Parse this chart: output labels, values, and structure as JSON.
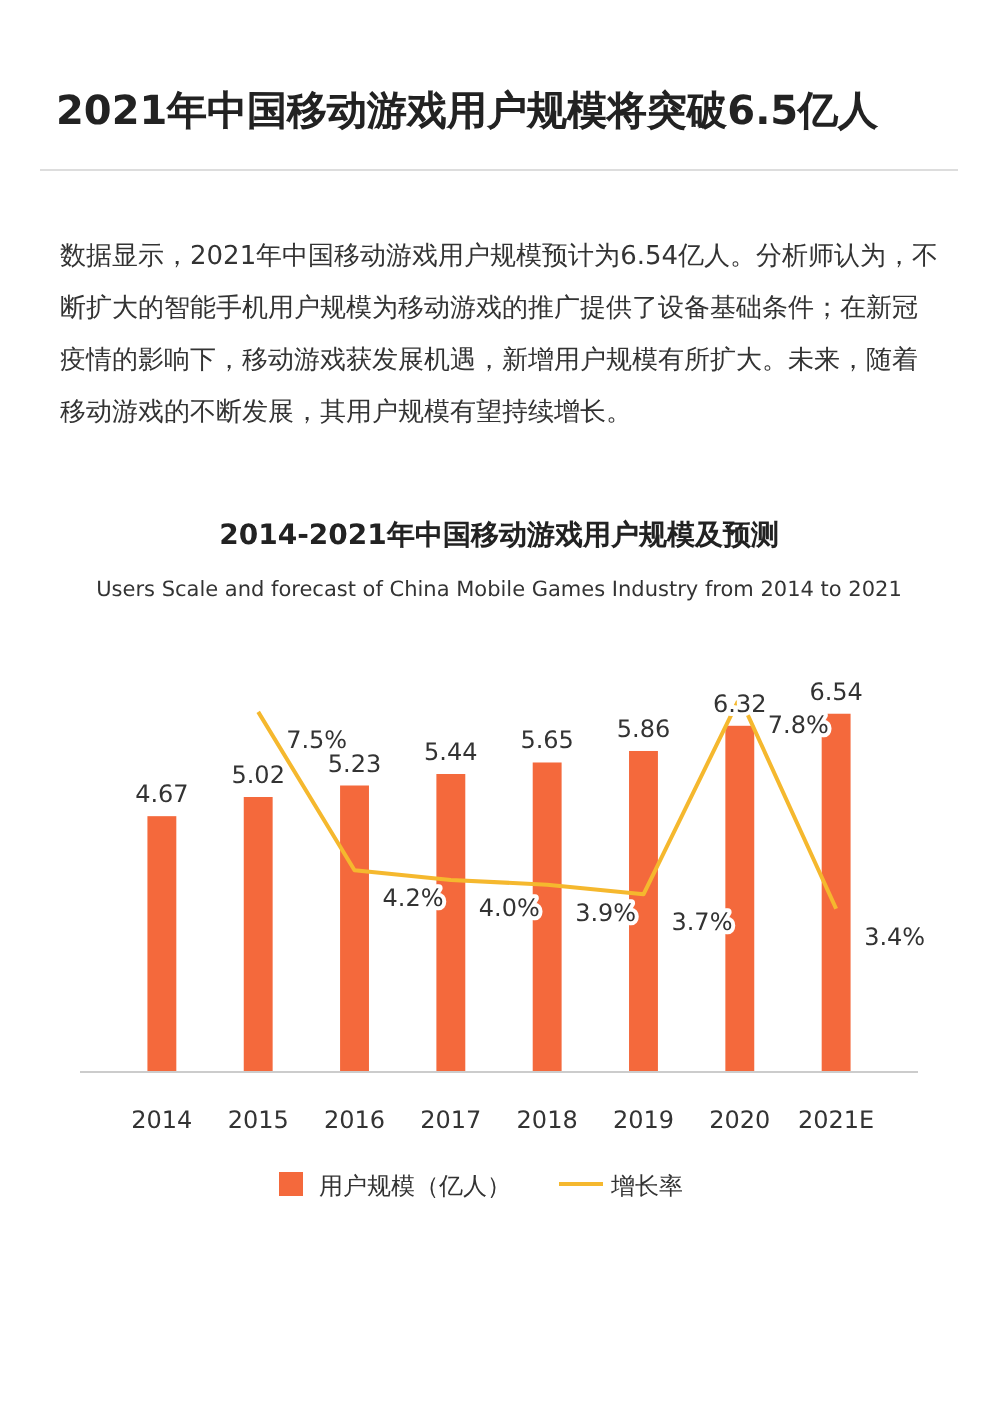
{
  "chart_data": {
    "type": "bar",
    "title": "2014-2021年中国移动游戏用户规模及预测",
    "subtitle": "Users Scale and forecast of China Mobile Games Industry from 2014 to 2021",
    "annotations": [
      "2021年中国移动游戏用户规模将突破6.5亿人",
      "数据显示，2021年中国移动游戏用户规模预计为6.54亿人。分析师认为，不断扩大的智能手机用户规模为移动游戏的推广提供了设备基础条件；在新冠疫情的影响下，移动游戏获发展机遇，新增用户规模有所扩大。未来，随着移动游戏的不断发展，其用户规模有望持续增长。"
    ],
    "categories": [
      "2014",
      "2015",
      "2016",
      "2017",
      "2018",
      "2019",
      "2020",
      "2021E"
    ],
    "series": [
      {
        "name": "用户规模（亿人）",
        "color": "#f4693c",
        "values": [
          4.67,
          5.02,
          5.23,
          5.44,
          5.65,
          5.86,
          6.32,
          6.54
        ],
        "value_labels": [
          "4.67",
          "5.02",
          "5.23",
          "5.44",
          "5.65",
          "5.86",
          "6.32",
          "6.54"
        ]
      },
      {
        "name": "增长率",
        "type": "line",
        "axis": "y2",
        "color": "#f5b82e",
        "values": [
          null,
          7.5,
          4.2,
          4.0,
          3.9,
          3.7,
          7.8,
          3.4
        ],
        "value_labels": [
          null,
          "7.5%",
          "4.2%",
          "4.0%",
          "3.9%",
          "3.7%",
          "7.8%",
          "3.4%"
        ]
      }
    ],
    "data_labels": true,
    "legend": "bottom",
    "grid": false
  }
}
